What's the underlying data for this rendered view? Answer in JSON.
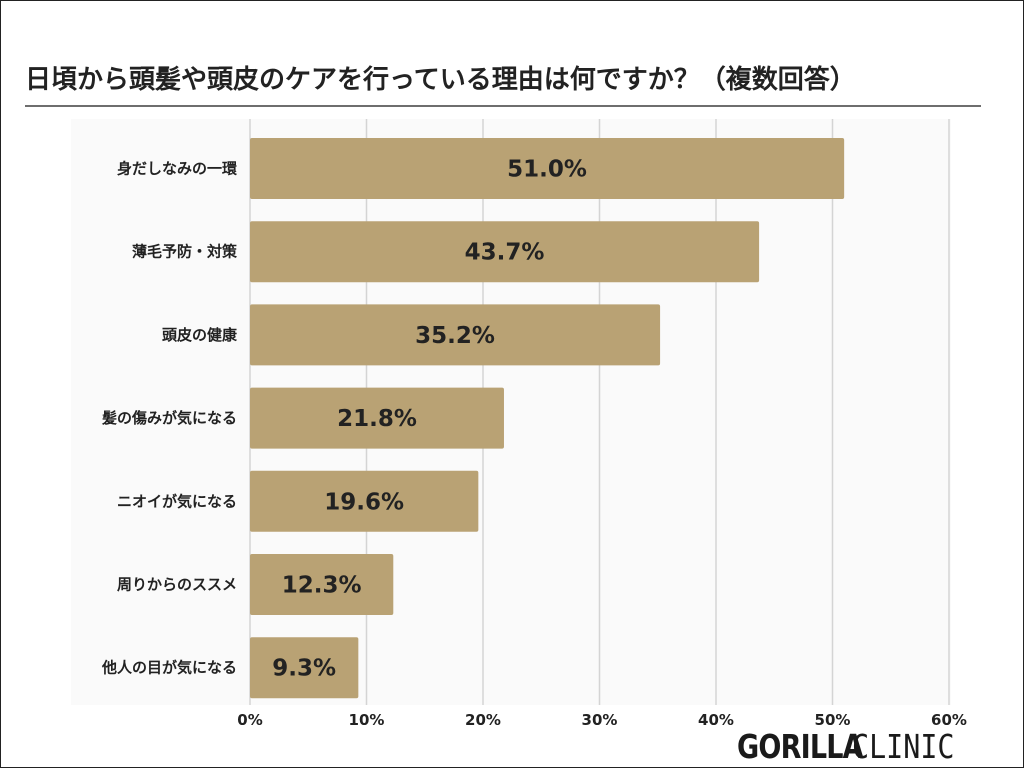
{
  "chart_data": {
    "type": "bar",
    "orientation": "horizontal",
    "title": "日頃から頭髪や頭皮のケアを行っている理由は何ですか？（複数回答）",
    "categories": [
      "身だしなみの一環",
      "薄毛予防・対策",
      "頭皮の健康",
      "髪の傷みが気になる",
      "ニオイが気になる",
      "周りからのススメ",
      "他人の目が気になる"
    ],
    "values": [
      51.0,
      43.7,
      35.2,
      21.8,
      19.6,
      12.3,
      9.3
    ],
    "value_labels": [
      "51.0%",
      "43.7%",
      "35.2%",
      "21.8%",
      "19.6%",
      "12.3%",
      "9.3%"
    ],
    "xlim": [
      0,
      60
    ],
    "x_ticks": [
      "0%",
      "10%",
      "20%",
      "30%",
      "40%",
      "50%",
      "60%"
    ],
    "grid": true,
    "xlabel": "",
    "ylabel": "",
    "bar_color": "#b9a274",
    "grid_color": "#d4d4d4"
  },
  "brand": {
    "logo_bold": "GORILLA",
    "logo_light": "CLINIC"
  }
}
